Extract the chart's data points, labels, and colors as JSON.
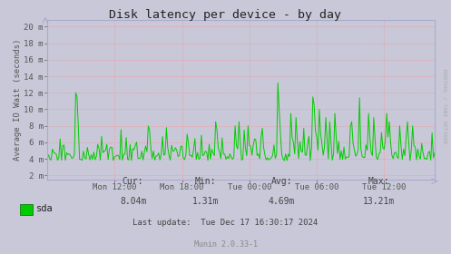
{
  "title": "Disk latency per device - by day",
  "ylabel": "Average IO Wait (seconds)",
  "bg_color": "#c8c8d8",
  "plot_bg_color": "#c8c8d8",
  "grid_color": "#ff8888",
  "line_color": "#00cc00",
  "ytick_labels": [
    "2 m",
    "4 m",
    "6 m",
    "8 m",
    "10 m",
    "12 m",
    "14 m",
    "16 m",
    "18 m",
    "20 m"
  ],
  "ytick_values": [
    2,
    4,
    6,
    8,
    10,
    12,
    14,
    16,
    18,
    20
  ],
  "xtick_labels": [
    "Mon 12:00",
    "Mon 18:00",
    "Tue 00:00",
    "Tue 06:00",
    "Tue 12:00"
  ],
  "legend_label": "sda",
  "cur_val": "8.04m",
  "min_val": "1.31m",
  "avg_val": "4.69m",
  "max_val": "13.21m",
  "last_update": "Tue Dec 17 16:30:17 2024",
  "munin_version": "Munin 2.0.33-1",
  "rrdtool_label": "RRDTOOL / TOBI OETIKER",
  "ymin": 2,
  "ymax": 20,
  "font_color": "#555555",
  "spine_color": "#aaaacc"
}
